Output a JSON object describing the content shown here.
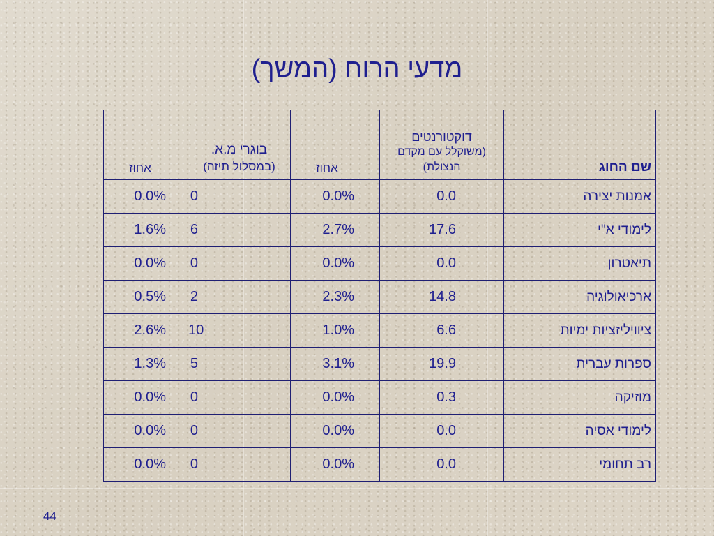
{
  "slide": {
    "title": "מדעי הרוח (המשך)",
    "page_number": "44"
  },
  "table": {
    "headers": {
      "name": "שם החוג",
      "doctorants_line1": "דוקטורנטים",
      "doctorants_line2": "(משוקלל עם מקדם",
      "doctorants_line3": "הנצולת)",
      "pct1": "אחוז",
      "grads_line1": "בוגרי מ.א.",
      "grads_line2": "(במסלול תיזה)",
      "pct2": "אחוז"
    },
    "rows": [
      {
        "name": "אמנות יצירה",
        "doctorants": "0.0",
        "pct1": "0.0%",
        "grads": "0",
        "pct2": "0.0%"
      },
      {
        "name": "לימודי א\"י",
        "doctorants": "17.6",
        "pct1": "2.7%",
        "grads": "6",
        "pct2": "1.6%"
      },
      {
        "name": "תיאטרון",
        "doctorants": "0.0",
        "pct1": "0.0%",
        "grads": "0",
        "pct2": "0.0%"
      },
      {
        "name": "ארכיאולוגיה",
        "doctorants": "14.8",
        "pct1": "2.3%",
        "grads": "2",
        "pct2": "0.5%"
      },
      {
        "name": "ציוויליזציות ימיות",
        "doctorants": "6.6",
        "pct1": "1.0%",
        "grads": "10",
        "pct2": "2.6%"
      },
      {
        "name": "ספרות עברית",
        "doctorants": "19.9",
        "pct1": "3.1%",
        "grads": "5",
        "pct2": "1.3%"
      },
      {
        "name": "מוזיקה",
        "doctorants": "0.3",
        "pct1": "0.0%",
        "grads": "0",
        "pct2": "0.0%"
      },
      {
        "name": "לימודי אסיה",
        "doctorants": "0.0",
        "pct1": "0.0%",
        "grads": "0",
        "pct2": "0.0%"
      },
      {
        "name": "רב תחומי",
        "doctorants": "0.0",
        "pct1": "0.0%",
        "grads": "0",
        "pct2": "0.0%"
      }
    ]
  },
  "colors": {
    "text": "#1f1f8f",
    "border": "#1f1f73",
    "background": "#ddd6c8"
  }
}
